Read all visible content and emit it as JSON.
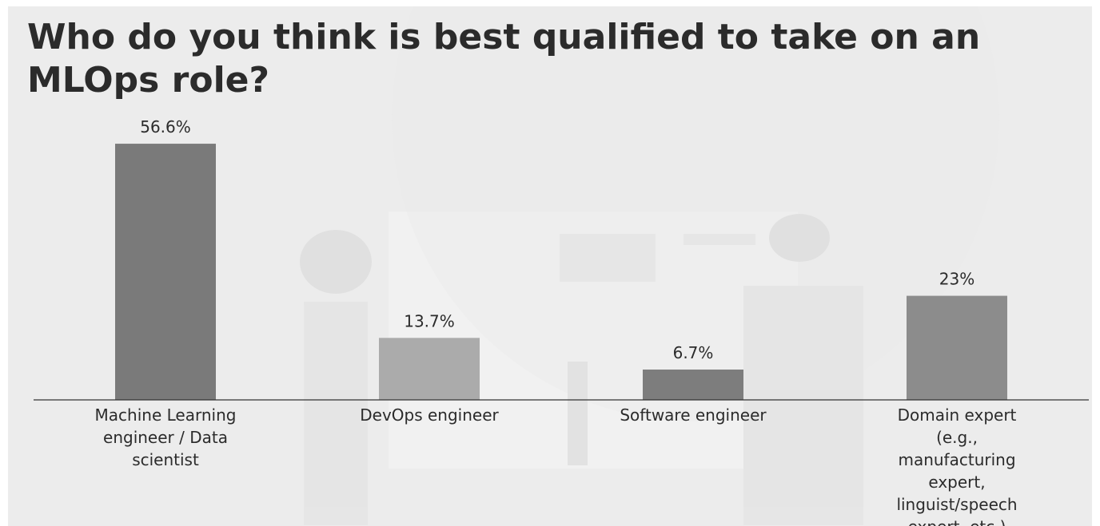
{
  "chart_data": {
    "type": "bar",
    "title": "Who do you think is best qualified to take on an MLOps role?",
    "categories": [
      "Machine Learning engineer / Data scientist",
      "DevOps engineer",
      "Software engineer",
      "Domain expert (e.g., manufacturing expert, linguist/speech expert, etc.)"
    ],
    "values": [
      56.6,
      13.7,
      6.7,
      23
    ],
    "value_labels": [
      "56.6%",
      "13.7%",
      "6.7%",
      "23%"
    ],
    "colors": [
      "#7a7a7a",
      "#ababab",
      "#7d7d7d",
      "#8c8c8c"
    ]
  }
}
